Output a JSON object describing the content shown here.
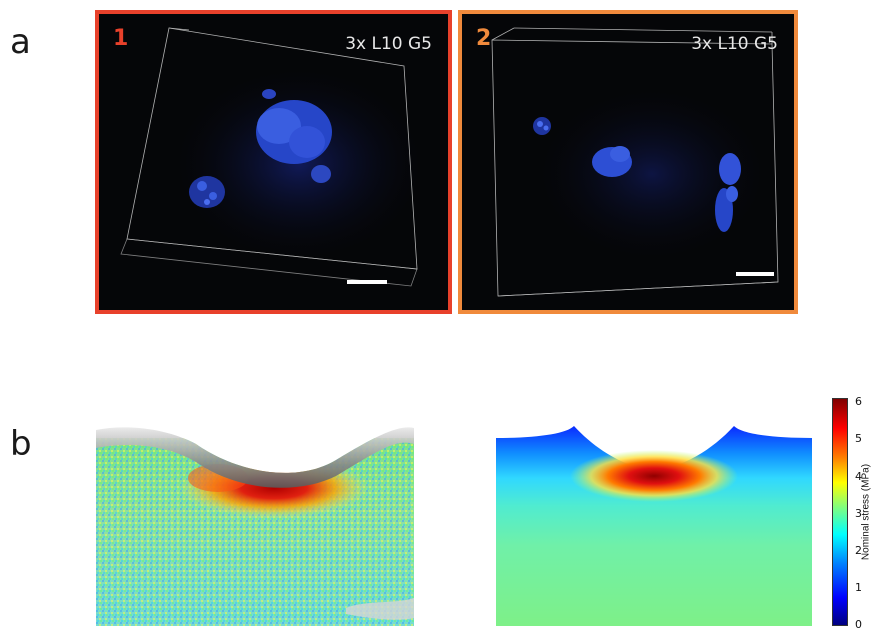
{
  "figure": {
    "panel_a": {
      "letter": "a",
      "images": [
        {
          "number": "1",
          "label": "3x L10 G5",
          "frame_color": "#e8412b"
        },
        {
          "number": "2",
          "label": "3x L10 G5",
          "frame_color": "#f08a3c"
        }
      ]
    },
    "panel_b": {
      "letter": "b",
      "colorbar": {
        "title": "Nominal stress (MPa)",
        "min": 0,
        "max": 6,
        "ticks": [
          "0",
          "1",
          "2",
          "3",
          "4",
          "5",
          "6"
        ],
        "colormap": "jet"
      }
    }
  }
}
